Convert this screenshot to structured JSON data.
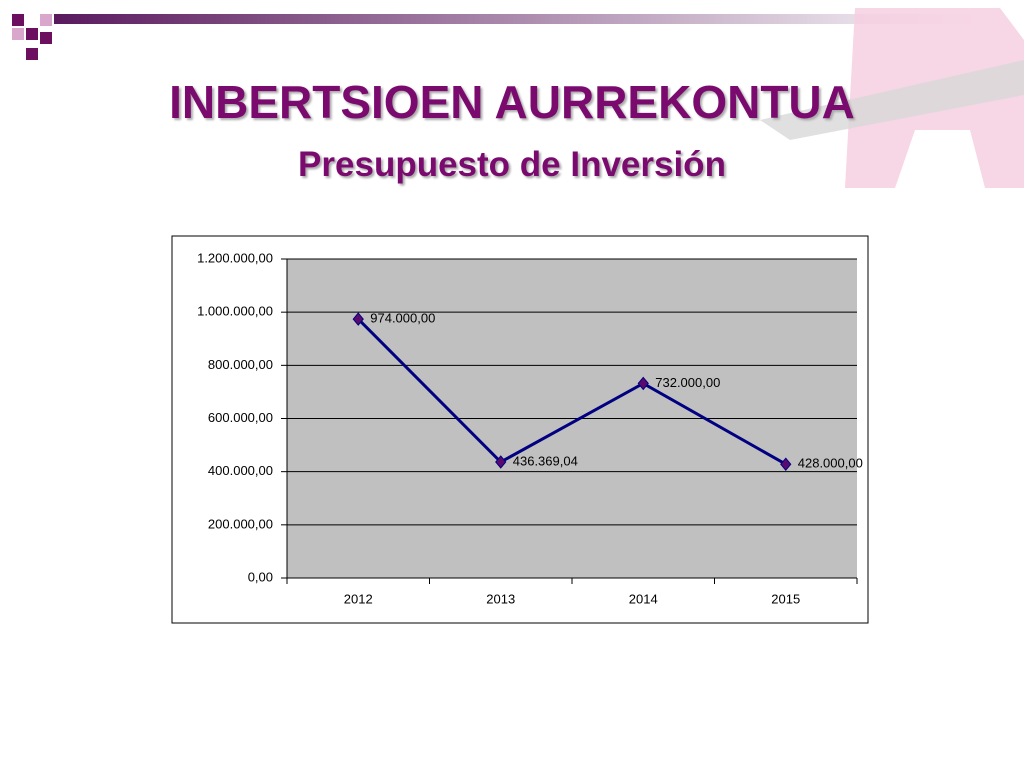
{
  "chart_data": {
    "type": "line",
    "title": "INBERTSIOEN AURREKONTUA",
    "subtitle": "Presupuesto de Inversión",
    "categories": [
      "2012",
      "2013",
      "2014",
      "2015"
    ],
    "series": [
      {
        "color": "#000080",
        "marker_color": "#5a0a6e",
        "values": [
          974000,
          436369.04,
          732000,
          428000
        ],
        "value_labels": [
          "974.000,00",
          "436.369,04",
          "732.000,00",
          "428.000,00"
        ]
      }
    ],
    "ylim": [
      0,
      1200000
    ],
    "yticks": [
      {
        "value": 0,
        "label": "0,00"
      },
      {
        "value": 200000,
        "label": "200.000,00"
      },
      {
        "value": 400000,
        "label": "400.000,00"
      },
      {
        "value": 600000,
        "label": "600.000,00"
      },
      {
        "value": 800000,
        "label": "800.000,00"
      },
      {
        "value": 1000000,
        "label": "1.000.000,00"
      },
      {
        "value": 1200000,
        "label": "1.200.000,00"
      }
    ],
    "grid": true
  }
}
